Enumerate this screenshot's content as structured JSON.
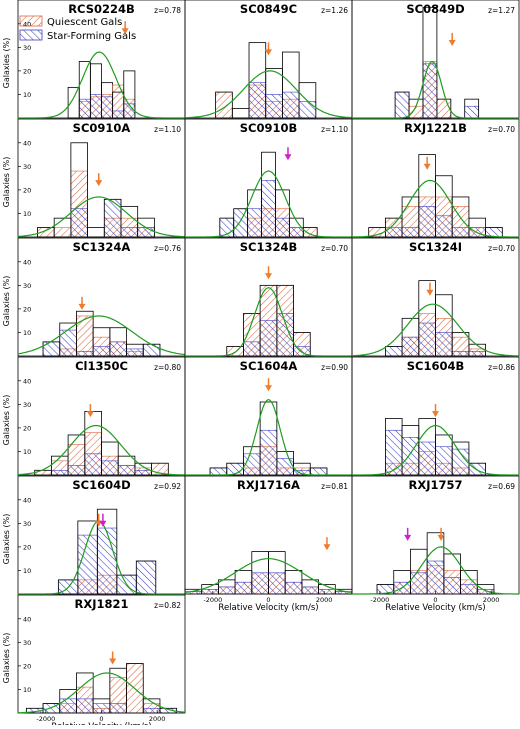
{
  "legend": {
    "quiescent_label": "Quiescent Gals",
    "starforming_label": "Star-Forming Gals"
  },
  "colors": {
    "quiescent": "#d9663f",
    "starforming": "#3b3fc4",
    "fit": "#1e9e1e",
    "arrow_orange": "#f07a2e",
    "arrow_magenta": "#cc22cc"
  },
  "shared_axes": {
    "ylabel": "Galaxies (%)",
    "xlabel": "Relative Velocity (km/s)",
    "yticks": [
      "10",
      "20",
      "30",
      "40"
    ],
    "xticks": [
      "-2000",
      "0",
      "2000"
    ],
    "xlim": [
      -3000,
      3000
    ],
    "ylim": [
      0,
      45
    ]
  },
  "chart_data": [
    {
      "type": "bar",
      "title": "RCS0224B",
      "z": "z=0.78",
      "bin_centers": [
        -1000,
        -600,
        -200,
        200,
        600,
        1000
      ],
      "total": [
        13,
        24,
        23,
        15,
        11,
        20
      ],
      "quiescent": [
        0,
        7,
        9,
        10,
        14,
        8
      ],
      "starforming": [
        0,
        8,
        10,
        9,
        3,
        6
      ],
      "fit": {
        "mean": -80,
        "sigma": 600,
        "amp": 28
      },
      "arrows": [
        {
          "color": "orange",
          "v": 850,
          "y": 36
        }
      ]
    },
    {
      "type": "bar",
      "title": "SC0849C",
      "z": "z=1.26",
      "bin_centers": [
        -1600,
        -1000,
        -400,
        200,
        800,
        1400
      ],
      "total": [
        11,
        4,
        32,
        21,
        28,
        15
      ],
      "quiescent": [
        11,
        0,
        14,
        7,
        8,
        0
      ],
      "starforming": [
        0,
        0,
        15,
        10,
        11,
        7
      ],
      "fit": {
        "mean": 50,
        "sigma": 950,
        "amp": 20
      },
      "arrows": [
        {
          "color": "orange",
          "v": 0,
          "y": 27
        }
      ]
    },
    {
      "type": "bar",
      "title": "SC0849D",
      "z": "z=1.27",
      "bin_centers": [
        -1200,
        -700,
        -200,
        300,
        800,
        1300
      ],
      "total": [
        11,
        8,
        47,
        8,
        0,
        8
      ],
      "quiescent": [
        0,
        5,
        24,
        8,
        0,
        0
      ],
      "starforming": [
        11,
        0,
        23,
        0,
        0,
        5
      ],
      "fit": {
        "mean": -120,
        "sigma": 330,
        "amp": 24
      },
      "arrows": [
        {
          "color": "orange",
          "v": 600,
          "y": 31
        }
      ]
    },
    {
      "type": "bar",
      "title": "SC0910A",
      "z": "z=1.10",
      "bin_centers": [
        -2000,
        -1400,
        -800,
        -200,
        400,
        1000,
        1600
      ],
      "total": [
        4,
        8,
        40,
        4,
        16,
        13,
        8
      ],
      "quiescent": [
        4,
        4,
        28,
        0,
        8,
        8,
        4
      ],
      "starforming": [
        0,
        0,
        12,
        0,
        16,
        4,
        4
      ],
      "fit": {
        "mean": -100,
        "sigma": 1000,
        "amp": 17
      },
      "arrows": [
        {
          "color": "orange",
          "v": -100,
          "y": 22
        }
      ]
    },
    {
      "type": "bar",
      "title": "SC0910B",
      "z": "z=1.10",
      "bin_centers": [
        -1500,
        -1000,
        -500,
        0,
        500,
        1000,
        1500
      ],
      "total": [
        8,
        12,
        20,
        36,
        20,
        8,
        4
      ],
      "quiescent": [
        0,
        0,
        8,
        12,
        12,
        4,
        4
      ],
      "starforming": [
        8,
        12,
        12,
        24,
        8,
        4,
        0
      ],
      "fit": {
        "mean": 0,
        "sigma": 600,
        "amp": 28
      },
      "arrows": [
        {
          "color": "magenta",
          "v": 700,
          "y": 33
        }
      ]
    },
    {
      "type": "bar",
      "title": "RXJ1221B",
      "z": "z=0.70",
      "bin_centers": [
        -2100,
        -1500,
        -900,
        -300,
        300,
        900,
        1500,
        2100
      ],
      "total": [
        4,
        8,
        17,
        35,
        26,
        17,
        8,
        4
      ],
      "quiescent": [
        4,
        8,
        13,
        17,
        17,
        13,
        4,
        0
      ],
      "starforming": [
        0,
        4,
        4,
        13,
        9,
        4,
        4,
        4
      ],
      "fit": {
        "mean": -200,
        "sigma": 750,
        "amp": 24
      },
      "arrows": [
        {
          "color": "orange",
          "v": -300,
          "y": 29
        }
      ]
    },
    {
      "type": "bar",
      "title": "SC1324A",
      "z": "z=0.76",
      "bin_centers": [
        -1800,
        -1200,
        -600,
        0,
        600,
        1200,
        1800
      ],
      "total": [
        6,
        14,
        19,
        12,
        12,
        5,
        5
      ],
      "quiescent": [
        0,
        3,
        17,
        8,
        6,
        2,
        0
      ],
      "starforming": [
        6,
        11,
        2,
        4,
        6,
        3,
        5
      ],
      "fit": {
        "mean": -100,
        "sigma": 1200,
        "amp": 17
      },
      "arrows": [
        {
          "color": "orange",
          "v": -700,
          "y": 20
        }
      ]
    },
    {
      "type": "bar",
      "title": "SC1324B",
      "z": "z=0.70",
      "bin_centers": [
        -1200,
        -600,
        0,
        600,
        1200
      ],
      "total": [
        4,
        18,
        30,
        30,
        10
      ],
      "quiescent": [
        4,
        18,
        30,
        30,
        10
      ],
      "starforming": [
        0,
        6,
        15,
        18,
        4
      ],
      "fit": {
        "mean": 0,
        "sigma": 500,
        "amp": 29
      },
      "arrows": [
        {
          "color": "orange",
          "v": 0,
          "y": 33
        }
      ]
    },
    {
      "type": "bar",
      "title": "SC1324I",
      "z": "z=0.70",
      "bin_centers": [
        -1500,
        -900,
        -300,
        300,
        900,
        1500
      ],
      "total": [
        4,
        16,
        32,
        26,
        10,
        5
      ],
      "quiescent": [
        0,
        8,
        18,
        16,
        8,
        3
      ],
      "starforming": [
        4,
        8,
        14,
        10,
        2,
        2
      ],
      "fit": {
        "mean": -100,
        "sigma": 900,
        "amp": 22
      },
      "arrows": [
        {
          "color": "orange",
          "v": -200,
          "y": 26
        }
      ]
    },
    {
      "type": "bar",
      "title": "Cl1350C",
      "z": "z=0.80",
      "bin_centers": [
        -2100,
        -1500,
        -900,
        -300,
        300,
        900,
        1500,
        2100
      ],
      "total": [
        2,
        8,
        17,
        27,
        14,
        8,
        5,
        5
      ],
      "quiescent": [
        2,
        6,
        13,
        18,
        8,
        4,
        3,
        5
      ],
      "starforming": [
        0,
        2,
        4,
        9,
        6,
        4,
        2,
        0
      ],
      "fit": {
        "mean": -200,
        "sigma": 900,
        "amp": 21
      },
      "arrows": [
        {
          "color": "orange",
          "v": -400,
          "y": 25
        }
      ]
    },
    {
      "type": "bar",
      "title": "SC1604A",
      "z": "z=0.90",
      "bin_centers": [
        -1800,
        -1200,
        -600,
        0,
        600,
        1200,
        1800
      ],
      "total": [
        3,
        5,
        12,
        31,
        10,
        5,
        3
      ],
      "quiescent": [
        0,
        0,
        3,
        12,
        3,
        3,
        0
      ],
      "starforming": [
        3,
        5,
        9,
        19,
        7,
        2,
        3
      ],
      "fit": {
        "mean": 0,
        "sigma": 420,
        "amp": 32
      },
      "arrows": [
        {
          "color": "orange",
          "v": 0,
          "y": 36
        }
      ]
    },
    {
      "type": "bar",
      "title": "SC1604B",
      "z": "z=0.86",
      "bin_centers": [
        -1500,
        -900,
        -300,
        300,
        900,
        1500
      ],
      "total": [
        24,
        21,
        24,
        17,
        14,
        5
      ],
      "quiescent": [
        5,
        5,
        10,
        5,
        3,
        0
      ],
      "starforming": [
        19,
        16,
        14,
        12,
        11,
        5
      ],
      "fit": {
        "mean": 0,
        "sigma": 700,
        "amp": 21
      },
      "arrows": [
        {
          "color": "orange",
          "v": 0,
          "y": 25
        }
      ]
    },
    {
      "type": "bar",
      "title": "SC1604D",
      "z": "z=0.92",
      "bin_centers": [
        -1200,
        -500,
        200,
        900,
        1600
      ],
      "total": [
        6,
        31,
        36,
        8,
        14
      ],
      "quiescent": [
        0,
        6,
        8,
        0,
        0
      ],
      "starforming": [
        6,
        25,
        28,
        8,
        14
      ],
      "fit": {
        "mean": -100,
        "sigma": 500,
        "amp": 31
      },
      "arrows": [
        {
          "color": "orange",
          "v": -100,
          "y": 29
        },
        {
          "color": "magenta",
          "v": 50,
          "y": 29
        }
      ]
    },
    {
      "type": "bar",
      "title": "RXJ1716A",
      "z": "z=0.81",
      "bin_centers": [
        -2700,
        -2100,
        -1500,
        -900,
        -300,
        300,
        900,
        1500,
        2100,
        2700
      ],
      "total": [
        2,
        4,
        6,
        10,
        18,
        18,
        10,
        6,
        4,
        2
      ],
      "quiescent": [
        1,
        2,
        3,
        5,
        9,
        9,
        5,
        3,
        2,
        1
      ],
      "starforming": [
        1,
        2,
        3,
        5,
        9,
        9,
        5,
        3,
        2,
        1
      ],
      "fit": {
        "mean": 0,
        "sigma": 1200,
        "amp": 15
      },
      "arrows": [
        {
          "color": "orange",
          "v": 2100,
          "y": 19
        }
      ]
    },
    {
      "type": "bar",
      "title": "RXJ1757",
      "z": "z=0.69",
      "bin_centers": [
        -1800,
        -1200,
        -600,
        0,
        600,
        1200,
        1800
      ],
      "total": [
        4,
        10,
        19,
        26,
        17,
        10,
        4
      ],
      "quiescent": [
        0,
        5,
        10,
        12,
        10,
        6,
        2
      ],
      "starforming": [
        4,
        5,
        9,
        14,
        7,
        4,
        2
      ],
      "fit": {
        "mean": 200,
        "sigma": 700,
        "amp": 20
      },
      "arrows": [
        {
          "color": "magenta",
          "v": -1000,
          "y": 23
        },
        {
          "color": "orange",
          "v": 200,
          "y": 23
        }
      ]
    },
    {
      "type": "bar",
      "title": "RXJ1821",
      "z": "z=0.82",
      "bin_centers": [
        -2400,
        -1800,
        -1200,
        -600,
        0,
        600,
        1200,
        1800,
        2400
      ],
      "total": [
        2,
        4,
        10,
        17,
        6,
        19,
        21,
        6,
        2
      ],
      "quiescent": [
        0,
        0,
        4,
        11,
        2,
        15,
        21,
        4,
        0
      ],
      "starforming": [
        2,
        4,
        6,
        6,
        4,
        4,
        0,
        2,
        2
      ],
      "fit": {
        "mean": 200,
        "sigma": 1000,
        "amp": 17
      },
      "arrows": [
        {
          "color": "orange",
          "v": 400,
          "y": 21
        }
      ]
    }
  ]
}
